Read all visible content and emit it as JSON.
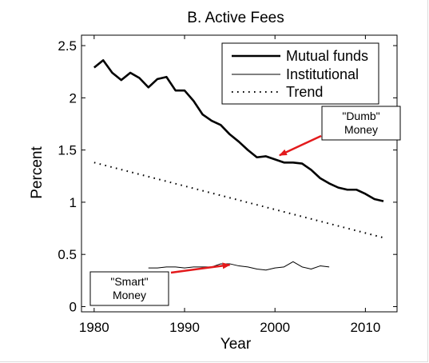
{
  "chart_data": {
    "type": "line",
    "title": "B. Active Fees",
    "xlabel": "Year",
    "ylabel": "Percent",
    "xlim": [
      1978.6,
      2013.5
    ],
    "ylim": [
      -0.05,
      2.6
    ],
    "xticks": [
      {
        "value": 1980,
        "label": "1980"
      },
      {
        "value": 1990,
        "label": "1990"
      },
      {
        "value": 2000,
        "label": "2000"
      },
      {
        "value": 2010,
        "label": "2010"
      }
    ],
    "yticks": [
      {
        "value": 0,
        "label": "0"
      },
      {
        "value": 0.5,
        "label": "0.5"
      },
      {
        "value": 1,
        "label": "1"
      },
      {
        "value": 1.5,
        "label": "1.5"
      },
      {
        "value": 2,
        "label": "2"
      },
      {
        "value": 2.5,
        "label": "2.5"
      }
    ],
    "grid": false,
    "legend_position": "top-right",
    "series": [
      {
        "name": "Mutual funds",
        "style": "thick-solid",
        "color": "#000000",
        "x": [
          1980,
          1981,
          1982,
          1983,
          1984,
          1985,
          1986,
          1987,
          1988,
          1989,
          1990,
          1991,
          1992,
          1993,
          1994,
          1995,
          1996,
          1997,
          1998,
          1999,
          2000,
          2001,
          2002,
          2003,
          2004,
          2005,
          2006,
          2007,
          2008,
          2009,
          2010,
          2011,
          2012
        ],
        "values": [
          2.29,
          2.36,
          2.24,
          2.17,
          2.24,
          2.19,
          2.1,
          2.18,
          2.2,
          2.07,
          2.07,
          1.97,
          1.84,
          1.78,
          1.74,
          1.65,
          1.58,
          1.5,
          1.43,
          1.44,
          1.41,
          1.38,
          1.38,
          1.37,
          1.31,
          1.23,
          1.18,
          1.14,
          1.12,
          1.12,
          1.08,
          1.03,
          1.01
        ]
      },
      {
        "name": "Institutional",
        "style": "thin-solid",
        "color": "#000000",
        "x": [
          1986,
          1987,
          1988,
          1989,
          1990,
          1991,
          1992,
          1993,
          1994,
          1995,
          1996,
          1997,
          1998,
          1999,
          2000,
          2001,
          2002,
          2003,
          2004,
          2005,
          2006
        ],
        "values": [
          0.37,
          0.37,
          0.38,
          0.38,
          0.37,
          0.38,
          0.38,
          0.38,
          0.41,
          0.41,
          0.39,
          0.38,
          0.36,
          0.35,
          0.37,
          0.38,
          0.43,
          0.38,
          0.36,
          0.39,
          0.38
        ]
      },
      {
        "name": "Trend",
        "style": "dotted",
        "color": "#000000",
        "x": [
          1980,
          2012
        ],
        "values": [
          1.38,
          0.66
        ]
      }
    ],
    "annotations": [
      {
        "lines": [
          "\"Dumb\"",
          "Money"
        ],
        "arrow_to": {
          "x": 2000.5,
          "y": 1.45
        },
        "arrow_color": "#e31a1c"
      },
      {
        "lines": [
          "\"Smart\"",
          "Money"
        ],
        "arrow_to": {
          "x": 1995,
          "y": 0.4
        },
        "arrow_color": "#e31a1c"
      }
    ]
  }
}
